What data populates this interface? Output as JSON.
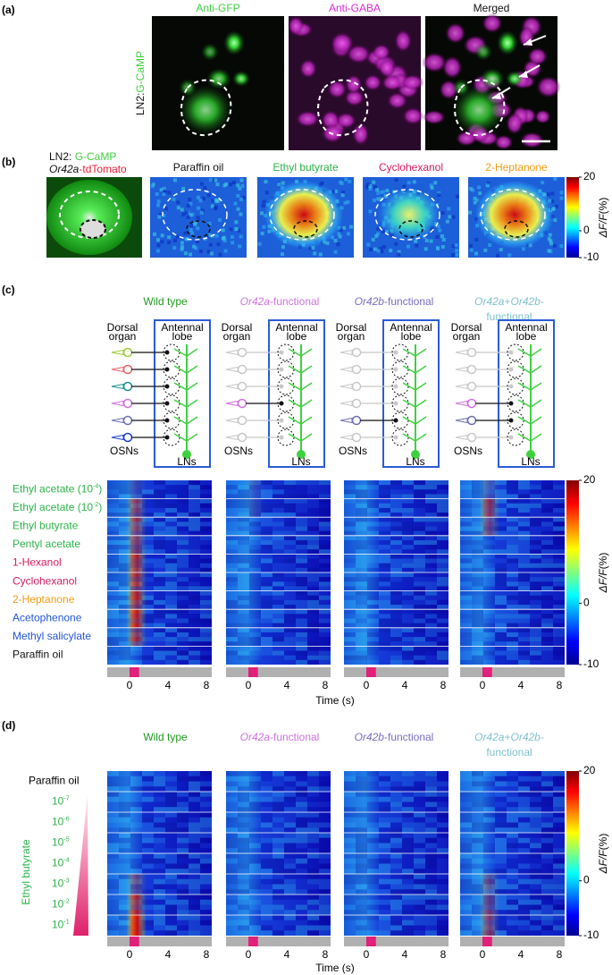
{
  "a": {
    "label": "(a)",
    "side_label": {
      "prefix": "LN2:",
      "marker": "G-CaMP"
    },
    "images": [
      {
        "title": "Anti-GFP",
        "color": "#3fcf3f"
      },
      {
        "title": "Anti-GABA",
        "color": "#d82ad8"
      },
      {
        "title": "Merged",
        "color": "#111111"
      }
    ]
  },
  "b": {
    "label": "(b)",
    "line1": {
      "prefix": "LN2: ",
      "marker": "G-CaMP"
    },
    "line2": {
      "gene": "Or42a",
      "marker": "-tdTomato"
    },
    "images": [
      {
        "title": "Paraffin oil",
        "color": "#111111"
      },
      {
        "title": "Ethyl butyrate",
        "color": "#2db34a"
      },
      {
        "title": "Cyclohexanol",
        "color": "#d81b60"
      },
      {
        "title": "2-Heptanone",
        "color": "#f39c12"
      }
    ],
    "colorbar": {
      "ticks": [
        20,
        0,
        -10
      ],
      "label": "ΔF/F",
      "unit": "(%)"
    }
  },
  "c": {
    "label": "(c)",
    "genotypes": [
      {
        "color": "#1f9a1f",
        "lines": [
          [
            {
              "text": "Wild type"
            }
          ]
        ]
      },
      {
        "color": "#cf72dd",
        "lines": [
          [
            {
              "text": "Or42a",
              "italic": true
            },
            {
              "text": "-functional"
            }
          ]
        ]
      },
      {
        "color": "#7a6cc4",
        "lines": [
          [
            {
              "text": "Or42b",
              "italic": true
            },
            {
              "text": "-functional"
            }
          ]
        ]
      },
      {
        "color": "#7fc3cc",
        "lines": [
          [
            {
              "text": "Or42a",
              "italic": true
            },
            {
              "text": "+"
            },
            {
              "text": "Or42b",
              "italic": true
            },
            {
              "text": "-"
            }
          ],
          [
            {
              "text": "functional"
            }
          ]
        ]
      }
    ],
    "diagram": {
      "dorsal": [
        "Dorsal",
        "organ"
      ],
      "lobe": [
        "Antennal",
        "lobe"
      ],
      "osns": "OSNs",
      "lns": "LNs"
    },
    "odors": [
      {
        "text": "Ethyl acetate (10",
        "sup": "-4",
        "after": ")",
        "color": "#2db34a"
      },
      {
        "text": "Ethyl acetate (10",
        "sup": "-2",
        "after": ")",
        "color": "#2db34a"
      },
      {
        "text": "Ethyl butyrate",
        "color": "#2db34a"
      },
      {
        "text": "Pentyl acetate",
        "color": "#2db34a"
      },
      {
        "text": "1-Hexanol",
        "color": "#d81b60"
      },
      {
        "text": "Cyclohexanol",
        "color": "#d81b60"
      },
      {
        "text": "2-Heptanone",
        "color": "#f39c12"
      },
      {
        "text": "Acetophenone",
        "color": "#2255d6"
      },
      {
        "text": "Methyl salicylate",
        "color": "#2255d6"
      },
      {
        "text": "Paraffin oil",
        "color": "#111111"
      }
    ],
    "time_ticks": [
      0,
      4,
      8
    ],
    "time_label": "Time (s)",
    "colorbar": {
      "ticks": [
        20,
        0,
        -10
      ],
      "label": "ΔF/F",
      "unit": "(%)"
    }
  },
  "d": {
    "label": "(d)",
    "genotypes": [
      {
        "color": "#1f9a1f",
        "lines": [
          [
            {
              "text": "Wild type"
            }
          ]
        ]
      },
      {
        "color": "#cf72dd",
        "lines": [
          [
            {
              "text": "Or42a",
              "italic": true
            },
            {
              "text": "-functional"
            }
          ]
        ]
      },
      {
        "color": "#7a6cc4",
        "lines": [
          [
            {
              "text": "Or42b",
              "italic": true
            },
            {
              "text": "-functional"
            }
          ]
        ]
      },
      {
        "color": "#7fc3cc",
        "lines": [
          [
            {
              "text": "Or42a",
              "italic": true
            },
            {
              "text": "+"
            },
            {
              "text": "Or42b",
              "italic": true
            },
            {
              "text": "-"
            }
          ],
          [
            {
              "text": "functional"
            }
          ]
        ]
      }
    ],
    "paraffin": "Paraffin oil",
    "odor": "Ethyl butyrate",
    "odor_color": "#2db34a",
    "concentrations": [
      {
        "base": "10",
        "exp": "-7"
      },
      {
        "base": "10",
        "exp": "-6"
      },
      {
        "base": "10",
        "exp": "-5"
      },
      {
        "base": "10",
        "exp": "-4"
      },
      {
        "base": "10",
        "exp": "-3"
      },
      {
        "base": "10",
        "exp": "-2"
      },
      {
        "base": "10",
        "exp": "-1"
      }
    ],
    "time_ticks": [
      0,
      4,
      8
    ],
    "time_label": "Time (s)",
    "colorbar": {
      "ticks": [
        20,
        0,
        -10
      ],
      "label": "ΔF/F",
      "unit": "(%)"
    }
  }
}
